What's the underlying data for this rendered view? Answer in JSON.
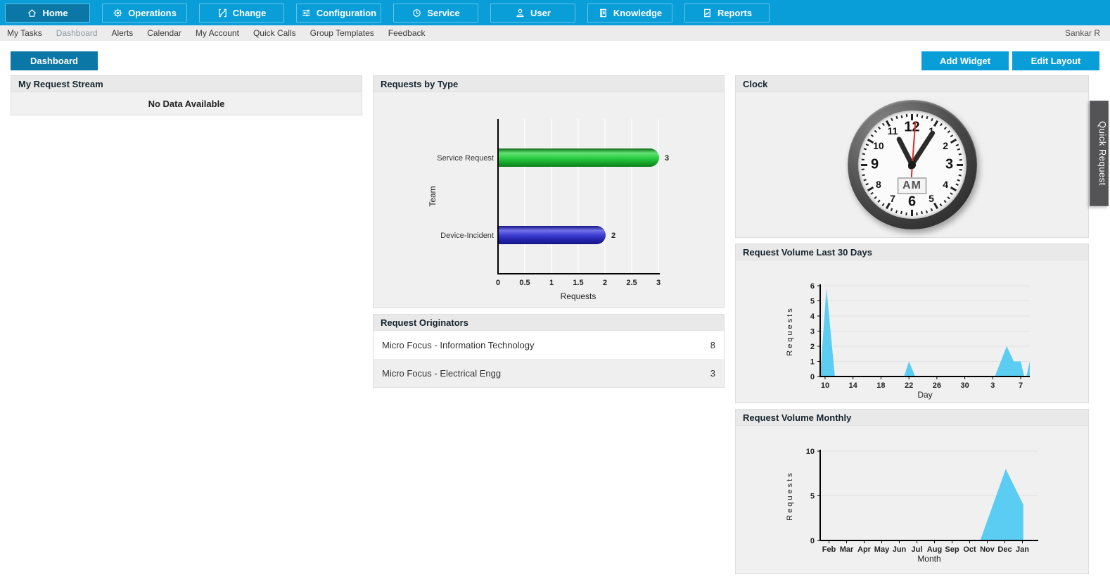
{
  "nav": {
    "items": [
      {
        "label": "Home",
        "icon": "home",
        "active": true
      },
      {
        "label": "Operations",
        "icon": "operations",
        "active": false
      },
      {
        "label": "Change",
        "icon": "change",
        "active": false
      },
      {
        "label": "Configuration",
        "icon": "configuration",
        "active": false
      },
      {
        "label": "Service",
        "icon": "service",
        "active": false
      },
      {
        "label": "User",
        "icon": "user",
        "active": false
      },
      {
        "label": "Knowledge",
        "icon": "knowledge",
        "active": false
      },
      {
        "label": "Reports",
        "icon": "reports",
        "active": false
      }
    ]
  },
  "subnav": {
    "items": [
      {
        "label": "My Tasks",
        "active": false
      },
      {
        "label": "Dashboard",
        "active": true
      },
      {
        "label": "Alerts",
        "active": false
      },
      {
        "label": "Calendar",
        "active": false
      },
      {
        "label": "My Account",
        "active": false
      },
      {
        "label": "Quick Calls",
        "active": false
      },
      {
        "label": "Group Templates",
        "active": false
      },
      {
        "label": "Feedback",
        "active": false
      }
    ],
    "user": "Sankar R"
  },
  "toolbar": {
    "dashboard_tab": "Dashboard",
    "add_widget": "Add Widget",
    "edit_layout": "Edit Layout"
  },
  "widgets": {
    "my_request_stream": {
      "title": "My Request Stream",
      "empty_message": "No Data Available"
    },
    "requests_by_type": {
      "title": "Requests by Type",
      "chart_data": {
        "type": "bar",
        "orientation": "horizontal",
        "categories": [
          "Service Request",
          "Device-Incident"
        ],
        "values": [
          3,
          2
        ],
        "bar_colors": [
          "green",
          "blue"
        ],
        "value_labels": [
          "3",
          "2"
        ],
        "xlabel": "Requests",
        "ylabel": "Team",
        "xticks": [
          {
            "label": "0",
            "v": 0
          },
          {
            "label": "0.5",
            "v": 0.5
          },
          {
            "label": "1",
            "v": 1
          },
          {
            "label": "1.5",
            "v": 1.5
          },
          {
            "label": "2",
            "v": 2
          },
          {
            "label": "2.5",
            "v": 2.5
          },
          {
            "label": "3",
            "v": 3
          }
        ],
        "xmax": 3
      }
    },
    "request_originators": {
      "title": "Request Originators",
      "rows": [
        {
          "name": "Micro Focus - Information Technology",
          "count": "8"
        },
        {
          "name": "Micro Focus - Electrical Engg",
          "count": "3"
        }
      ]
    },
    "clock": {
      "title": "Clock",
      "period": "AM",
      "numbers": [
        1,
        2,
        3,
        4,
        5,
        6,
        7,
        8,
        9,
        10,
        11,
        12
      ],
      "big_numbers": [
        12,
        3,
        6,
        9
      ],
      "hour_angle": 333,
      "minute_angle": 33,
      "second_angle": 4
    },
    "volume_30days": {
      "title": "Request Volume Last 30 Days",
      "chart_data": {
        "type": "area",
        "color": "#5bcdf2",
        "xlabel": "Day",
        "ylabel": "Requests",
        "yticks": [
          0,
          1,
          2,
          3,
          4,
          5,
          6
        ],
        "ymax": 6,
        "xticks": [
          {
            "label": "10",
            "x": 0.7
          },
          {
            "label": "14",
            "x": 4.7
          },
          {
            "label": "18",
            "x": 8.7
          },
          {
            "label": "22",
            "x": 12.7
          },
          {
            "label": "26",
            "x": 16.7
          },
          {
            "label": "30",
            "x": 20.7
          },
          {
            "label": "3",
            "x": 24.7
          },
          {
            "label": "7",
            "x": 28.7
          }
        ],
        "xmax": 30,
        "points": [
          [
            0,
            0
          ],
          [
            0.9,
            5.85
          ],
          [
            2.1,
            0
          ],
          [
            12,
            0
          ],
          [
            12.7,
            1
          ],
          [
            13.6,
            0
          ],
          [
            25,
            0
          ],
          [
            26.7,
            2
          ],
          [
            27.7,
            1
          ],
          [
            28.7,
            1
          ],
          [
            29.2,
            0
          ],
          [
            29.5,
            0
          ],
          [
            30,
            1
          ]
        ]
      }
    },
    "volume_monthly": {
      "title": "Request Volume Monthly",
      "chart_data": {
        "type": "area",
        "color": "#5bcdf2",
        "xlabel": "Month",
        "ylabel": "Requests",
        "yticks": [
          0,
          5,
          10
        ],
        "ymax": 10,
        "xticks": [
          {
            "label": "Feb",
            "x": 0.5
          },
          {
            "label": "Mar",
            "x": 1.5
          },
          {
            "label": "Apr",
            "x": 2.5
          },
          {
            "label": "May",
            "x": 3.5
          },
          {
            "label": "Jun",
            "x": 4.5
          },
          {
            "label": "Jul",
            "x": 5.5
          },
          {
            "label": "Aug",
            "x": 6.5
          },
          {
            "label": "Sep",
            "x": 7.5
          },
          {
            "label": "Oct",
            "x": 8.5
          },
          {
            "label": "Nov",
            "x": 9.5
          },
          {
            "label": "Dec",
            "x": 10.5
          },
          {
            "label": "Jan",
            "x": 11.5
          }
        ],
        "xmax": 12.4,
        "points": [
          [
            0,
            0
          ],
          [
            9.1,
            0
          ],
          [
            10.55,
            8
          ],
          [
            11.55,
            4
          ]
        ]
      }
    }
  },
  "quick_request_tab": "Quick Request",
  "colors": {
    "nav_blue": "#0a9ed8",
    "nav_active_blue": "#0b77a6",
    "widget_header_bg": "#e9e9e9",
    "widget_body_bg": "#f0f0f0",
    "bar_green": "#2dd047",
    "bar_blue": "#3d3dd2",
    "area_cyan": "#5bcdf2",
    "quick_tab_gray": "#545457"
  }
}
